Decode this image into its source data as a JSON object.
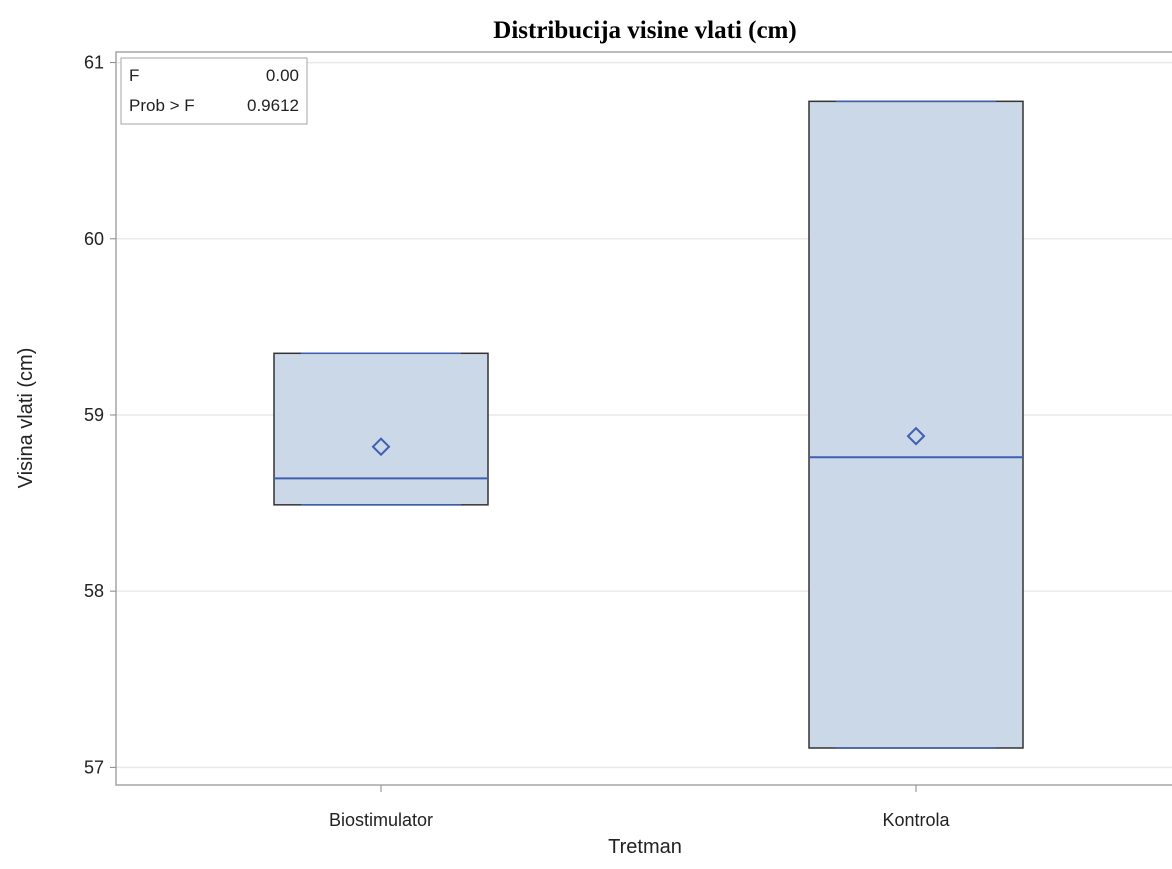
{
  "chart_data": {
    "type": "box",
    "title": "Distribucija visine vlati (cm)",
    "xlabel": "Tretman",
    "ylabel": "Visina vlati (cm)",
    "ylim": [
      56.9,
      61.06
    ],
    "yticks": [
      "57",
      "58",
      "59",
      "60",
      "61"
    ],
    "categories": [
      "Biostimulator",
      "Kontrola"
    ],
    "boxes": [
      {
        "category": "Biostimulator",
        "min": 58.49,
        "q1": 58.49,
        "median": 58.64,
        "mean": 58.82,
        "q3": 59.35,
        "max": 59.35
      },
      {
        "category": "Kontrola",
        "min": 57.11,
        "q1": 57.11,
        "median": 58.76,
        "mean": 58.88,
        "q3": 60.78,
        "max": 60.78
      }
    ],
    "stats": [
      {
        "label": "F",
        "value": "0.00"
      },
      {
        "label": "Prob > F",
        "value": "0.9612"
      }
    ],
    "grid": true,
    "colors": {
      "box_fill": "#cbd8e8",
      "box_edge": "#333333",
      "median": "#3f5fb3",
      "mean_marker": "#3f5fb3",
      "grid": "#e9e9e9",
      "frame": "#a6a6a6"
    }
  }
}
